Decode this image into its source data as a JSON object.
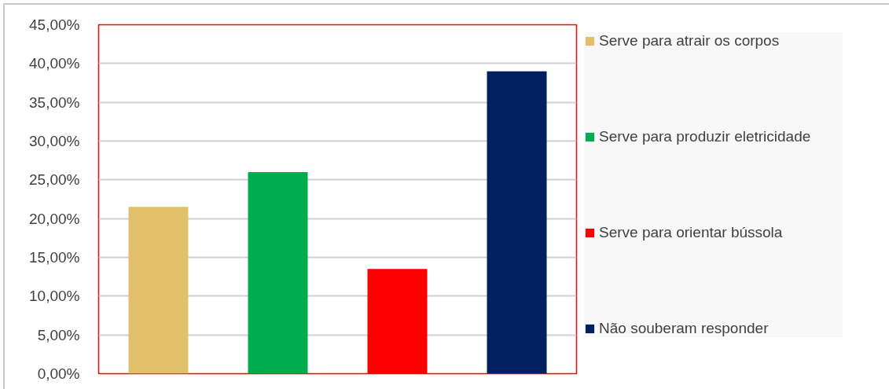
{
  "chart_data": {
    "type": "bar",
    "categories": [
      null,
      null,
      null,
      null
    ],
    "series": [
      {
        "name": "Serve para atrair os corpos",
        "color": "#e2bf6a",
        "values": [
          21.5,
          null,
          null,
          null
        ]
      },
      {
        "name": "Serve para produzir eletricidade",
        "color": "#00ad4e",
        "values": [
          null,
          26.0,
          null,
          null
        ]
      },
      {
        "name": "Serve para orientar bússola",
        "color": "#ff0000",
        "values": [
          null,
          null,
          13.5,
          null
        ]
      },
      {
        "name": "Não souberam responder",
        "color": "#002060",
        "values": [
          null,
          null,
          null,
          39.0
        ]
      }
    ],
    "ylim": [
      0,
      45
    ],
    "yticks": [
      {
        "value": 0,
        "label": "0,00%"
      },
      {
        "value": 5,
        "label": "5,00%"
      },
      {
        "value": 10,
        "label": "10,00%"
      },
      {
        "value": 15,
        "label": "15,00%"
      },
      {
        "value": 20,
        "label": "20,00%"
      },
      {
        "value": 25,
        "label": "25,00%"
      },
      {
        "value": 30,
        "label": "30,00%"
      },
      {
        "value": 35,
        "label": "35,00%"
      },
      {
        "value": 40,
        "label": "40,00%"
      },
      {
        "value": 45,
        "label": "45,00%"
      }
    ],
    "grid": "y",
    "legend": "right",
    "tick_labels": "y"
  }
}
